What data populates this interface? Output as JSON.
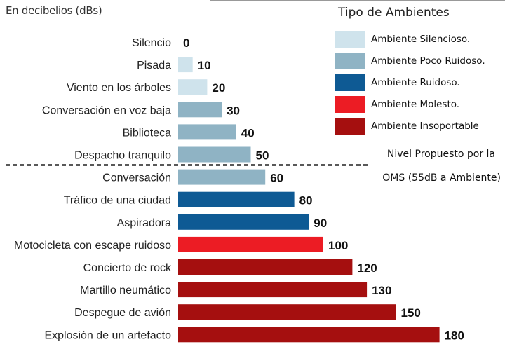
{
  "unit_label": "En decibelios (dBs)",
  "legend": {
    "title": "Tipo de Ambientes",
    "items": [
      {
        "label": "Ambiente Silencioso.",
        "color": "#cfe3ec"
      },
      {
        "label": "Ambiente Poco Ruidoso.",
        "color": "#8fb3c4"
      },
      {
        "label": "Ambiente Ruidoso.",
        "color": "#0e5a94"
      },
      {
        "label": "Ambiente Molesto.",
        "color": "#ec1c24"
      },
      {
        "label": "Ambiente Insoportable",
        "color": "#a50f0f"
      }
    ]
  },
  "threshold": {
    "line1": "Nivel Propuesto por la",
    "line2": "OMS (55dB a Ambiente)",
    "value": 55
  },
  "chart_data": {
    "type": "bar",
    "orientation": "horizontal",
    "xlabel": "En decibelios (dBs)",
    "categories": [
      "Silencio",
      "Pisada",
      "Viento en los árboles",
      "Conversación en voz baja",
      "Biblioteca",
      "Despacho tranquilo",
      "Conversación",
      "Tráfico de una ciudad",
      "Aspiradora",
      "Motocicleta con escape ruidoso",
      "Concierto de rock",
      "Martillo neumático",
      "Despegue de avión",
      "Explosión de un artefacto"
    ],
    "values": [
      0,
      10,
      20,
      30,
      40,
      50,
      60,
      80,
      90,
      100,
      120,
      130,
      150,
      180
    ],
    "value_labels": [
      "0",
      "10",
      "20",
      "30",
      "40",
      "50",
      "60",
      "80",
      "90",
      "100",
      "120",
      "130",
      "150",
      "180"
    ],
    "level_index": [
      0,
      0,
      0,
      1,
      1,
      1,
      1,
      2,
      2,
      3,
      4,
      4,
      4,
      4
    ],
    "xlim": [
      0,
      180
    ],
    "grid": false,
    "legend_position": "top-right"
  }
}
